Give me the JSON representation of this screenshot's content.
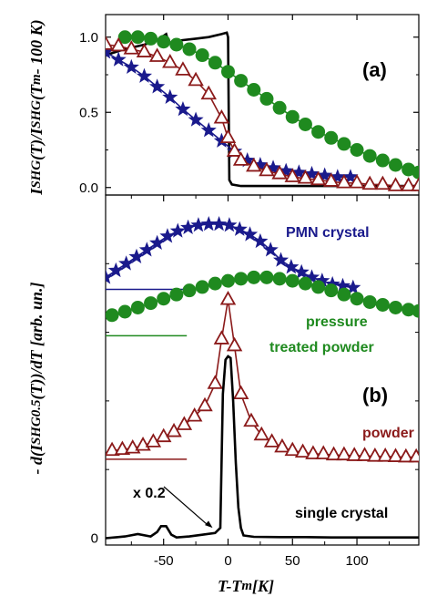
{
  "colors": {
    "blue": "#1a1a8c",
    "green": "#1f8a1f",
    "red": "#8b1a1a",
    "black": "#000000"
  },
  "chart_data": [
    {
      "type": "line",
      "panel_label": "(a)",
      "ylabel_html": "I<sub>SHG</sub>(T)/I<sub>SHG</sub>(T<sub>m</sub> - 100 K)",
      "ylabel": "I_SHG(T)/I_SHG(T_m - 100 K)",
      "xlim": [
        -95,
        148
      ],
      "ylim": [
        -0.05,
        1.15
      ],
      "yticks": [
        0.0,
        0.5,
        1.0
      ],
      "ytick_labels": [
        "0.0",
        "0.5",
        "1.0"
      ],
      "series": [
        {
          "key": "single",
          "color": "#000000",
          "marker": "none",
          "x": [
            -95,
            -80,
            -65,
            -55,
            -48,
            -46,
            -42,
            -35,
            -25,
            -15,
            -5,
            -1,
            0,
            1,
            3,
            10,
            30,
            60,
            100,
            148
          ],
          "y": [
            0.88,
            0.92,
            0.95,
            0.98,
            1.02,
            0.96,
            0.97,
            0.98,
            0.99,
            1.0,
            1.02,
            1.03,
            1.0,
            0.05,
            0.02,
            0.01,
            0.01,
            0.01,
            0.01,
            0.01
          ]
        },
        {
          "key": "pmn",
          "color": "#1a1a8c",
          "marker": "star",
          "x": [
            -95,
            -85,
            -75,
            -65,
            -55,
            -45,
            -35,
            -25,
            -15,
            -5,
            5,
            15,
            25,
            35,
            45,
            55,
            65,
            75,
            85,
            95
          ],
          "y": [
            0.9,
            0.85,
            0.8,
            0.74,
            0.67,
            0.6,
            0.52,
            0.45,
            0.38,
            0.31,
            0.24,
            0.18,
            0.15,
            0.13,
            0.11,
            0.1,
            0.09,
            0.08,
            0.07,
            0.07
          ]
        },
        {
          "key": "pressure",
          "color": "#1f8a1f",
          "marker": "circle",
          "x": [
            -80,
            -70,
            -60,
            -50,
            -40,
            -30,
            -20,
            -10,
            0,
            10,
            20,
            30,
            40,
            50,
            60,
            70,
            80,
            90,
            100,
            110,
            120,
            130,
            140,
            148
          ],
          "y": [
            1.0,
            1.0,
            0.99,
            0.97,
            0.95,
            0.92,
            0.88,
            0.83,
            0.77,
            0.71,
            0.65,
            0.59,
            0.53,
            0.47,
            0.42,
            0.37,
            0.33,
            0.29,
            0.25,
            0.21,
            0.18,
            0.15,
            0.12,
            0.1
          ]
        },
        {
          "key": "powder",
          "color": "#8b1a1a",
          "marker": "triangle",
          "x": [
            -95,
            -85,
            -75,
            -65,
            -55,
            -45,
            -35,
            -25,
            -15,
            -5,
            0,
            5,
            10,
            20,
            30,
            40,
            50,
            60,
            70,
            80,
            90,
            100,
            110,
            120,
            130,
            140,
            148
          ],
          "y": [
            0.95,
            0.94,
            0.92,
            0.9,
            0.87,
            0.83,
            0.78,
            0.71,
            0.62,
            0.46,
            0.33,
            0.24,
            0.18,
            0.14,
            0.11,
            0.09,
            0.07,
            0.06,
            0.05,
            0.04,
            0.03,
            0.03,
            0.02,
            0.02,
            0.01,
            0.01,
            0.01
          ]
        }
      ]
    },
    {
      "type": "line",
      "panel_label": "(b)",
      "ylabel_html": "- d(I<sub>SHG</sub><sup>0.5</sup>(T))/dT [arb. un.]",
      "ylabel": "- d(I_SHG^0.5(T))/dT [arb. un.]",
      "xlabel_html": "T-T<sub>m</sub> [K]",
      "xlabel": "T-T_m [K]",
      "xlim": [
        -95,
        148
      ],
      "xticks": [
        -50,
        0,
        50,
        100
      ],
      "xtick_labels": [
        "-50",
        "0",
        "50",
        "100"
      ],
      "ylim": [
        -0.2,
        10.0
      ],
      "yticks": [
        0
      ],
      "ytick_labels": [
        "0"
      ],
      "annotation": "x 0.2",
      "annotation_target": {
        "x": -12,
        "y": 0.3
      },
      "series": [
        {
          "key": "pmn",
          "label": "PMN crystal",
          "color": "#1a1a8c",
          "marker": "star",
          "baseline": 7.25,
          "baseline_x": [
            -95,
            -32
          ],
          "x": [
            -95,
            -87,
            -79,
            -71,
            -63,
            -55,
            -47,
            -39,
            -31,
            -23,
            -15,
            -7,
            1,
            9,
            17,
            25,
            33,
            41,
            49,
            57,
            65,
            73,
            81,
            89,
            97
          ],
          "y": [
            7.6,
            7.8,
            8.0,
            8.2,
            8.4,
            8.6,
            8.8,
            8.95,
            9.05,
            9.12,
            9.15,
            9.15,
            9.12,
            9.0,
            8.85,
            8.65,
            8.4,
            8.1,
            7.9,
            7.75,
            7.6,
            7.5,
            7.4,
            7.35,
            7.3
          ]
        },
        {
          "key": "pressure",
          "label_lines": [
            "pressure",
            "treated powder"
          ],
          "color": "#1f8a1f",
          "marker": "circle",
          "baseline": 5.9,
          "baseline_x": [
            -95,
            -32
          ],
          "x": [
            -90,
            -80,
            -70,
            -60,
            -50,
            -40,
            -30,
            -20,
            -10,
            0,
            10,
            20,
            30,
            40,
            50,
            60,
            70,
            80,
            90,
            100,
            110,
            120,
            130,
            140,
            148
          ],
          "y": [
            6.5,
            6.6,
            6.72,
            6.85,
            6.98,
            7.1,
            7.22,
            7.32,
            7.42,
            7.5,
            7.56,
            7.6,
            7.6,
            7.56,
            7.5,
            7.42,
            7.32,
            7.22,
            7.1,
            6.98,
            6.88,
            6.8,
            6.72,
            6.66,
            6.62
          ]
        },
        {
          "key": "powder",
          "label": "powder",
          "color": "#8b1a1a",
          "marker": "triangle",
          "baseline": 2.3,
          "baseline_x": [
            -95,
            -32
          ],
          "x": [
            -90,
            -82,
            -74,
            -66,
            -58,
            -50,
            -42,
            -34,
            -26,
            -18,
            -10,
            -5,
            0,
            5,
            10,
            18,
            26,
            34,
            42,
            50,
            58,
            66,
            74,
            82,
            90,
            98,
            106,
            114,
            122,
            130,
            138,
            146
          ],
          "y": [
            2.55,
            2.58,
            2.62,
            2.7,
            2.8,
            2.95,
            3.1,
            3.3,
            3.55,
            3.85,
            4.5,
            5.8,
            6.95,
            5.6,
            4.2,
            3.4,
            3.0,
            2.8,
            2.65,
            2.55,
            2.5,
            2.45,
            2.45,
            2.42,
            2.42,
            2.4,
            2.4,
            2.38,
            2.38,
            2.37,
            2.36,
            2.36
          ]
        },
        {
          "key": "single",
          "label": "single crystal",
          "color": "#000000",
          "marker": "none",
          "x": [
            -95,
            -80,
            -70,
            -60,
            -55,
            -52,
            -48,
            -44,
            -40,
            -30,
            -20,
            -10,
            -6,
            -4,
            -2,
            0,
            2,
            4,
            6,
            8,
            10,
            12,
            20,
            40,
            60,
            80,
            100,
            120,
            148
          ],
          "y": [
            0.0,
            0.05,
            0.12,
            0.05,
            0.18,
            0.35,
            0.35,
            0.1,
            0.02,
            0.05,
            0.1,
            0.15,
            0.3,
            4.2,
            5.2,
            5.3,
            5.25,
            4.0,
            2.2,
            0.9,
            0.3,
            0.08,
            0.04,
            0.03,
            0.03,
            0.02,
            0.02,
            0.02,
            0.02
          ]
        }
      ]
    }
  ]
}
